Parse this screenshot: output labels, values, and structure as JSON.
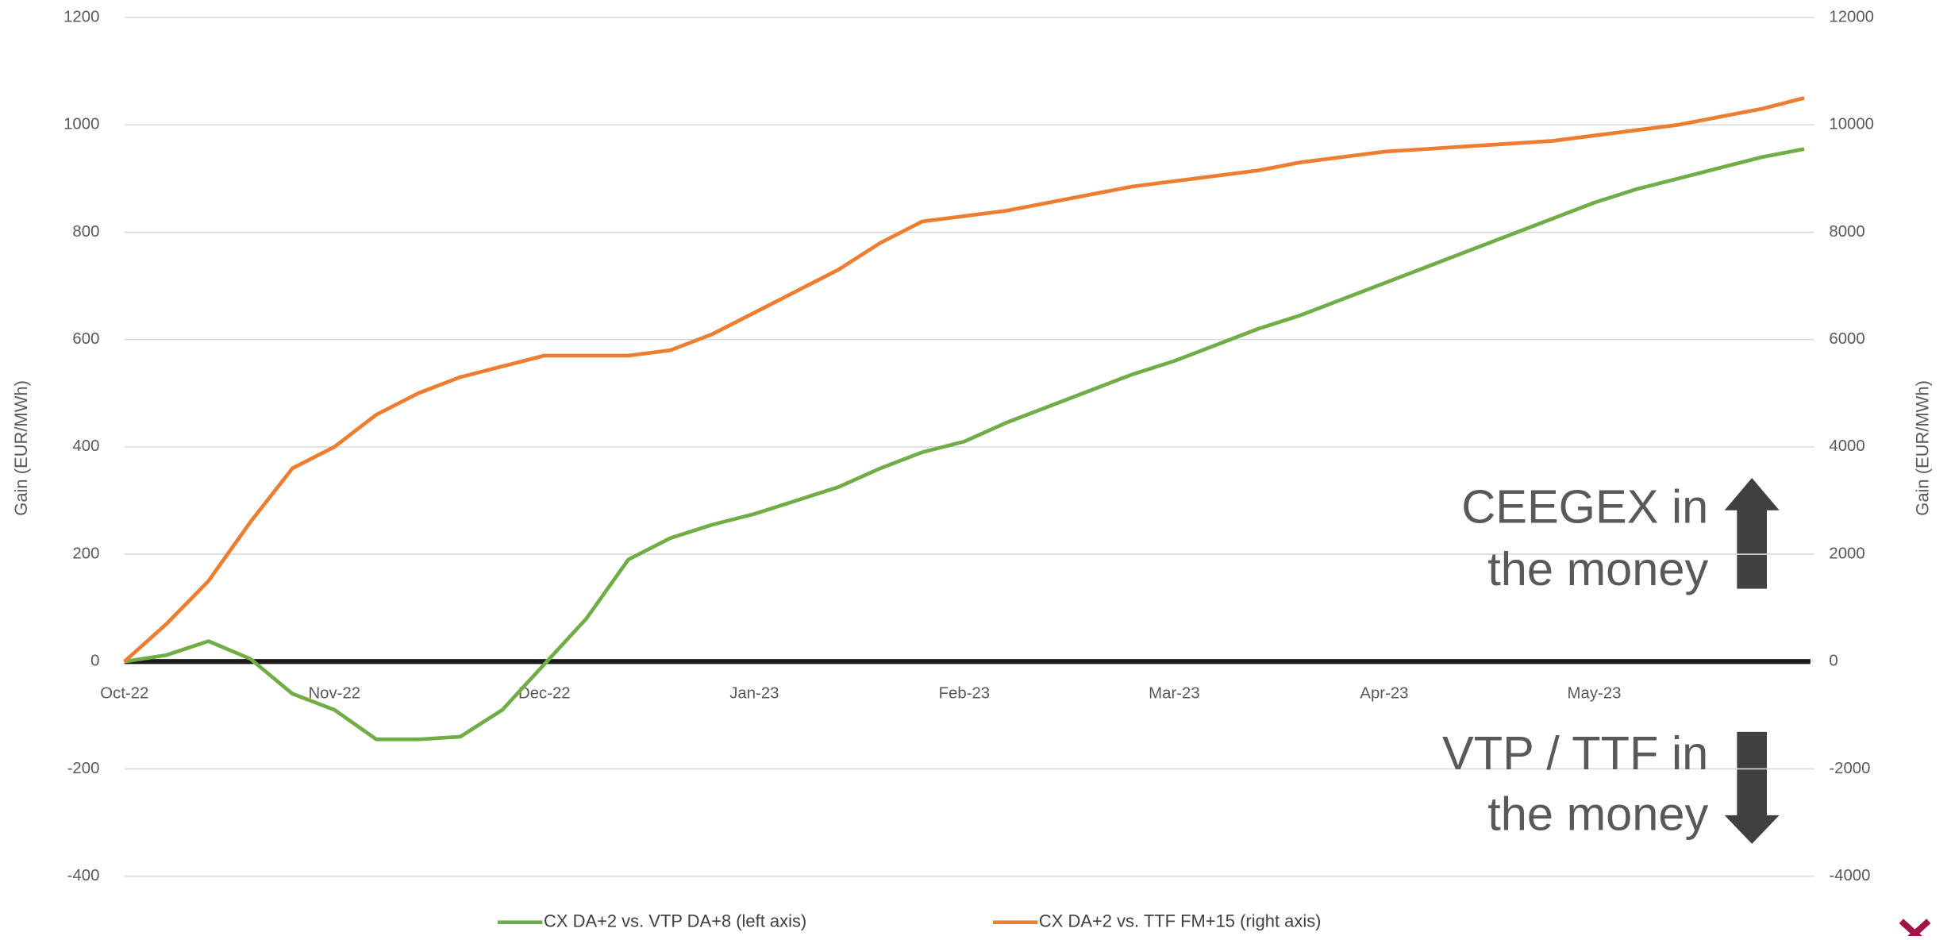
{
  "chart_data": {
    "type": "line",
    "ylabel": "Gain (EUR/MWh)",
    "y2label": "Gain (EUR/MWh)",
    "categories": [
      "Oct-22",
      null,
      null,
      null,
      null,
      "Nov-22",
      null,
      null,
      null,
      null,
      "Dec-22",
      null,
      null,
      null,
      null,
      "Jan-23",
      null,
      null,
      null,
      null,
      "Feb-23",
      null,
      null,
      null,
      null,
      "Mar-23",
      null,
      null,
      null,
      null,
      "Apr-23",
      null,
      null,
      null,
      null,
      "May-23",
      null,
      null,
      null,
      null,
      null
    ],
    "series": [
      {
        "name": "CX DA+2 vs. VTP DA+8 (left axis)",
        "color": "#70ad47",
        "axis": "y",
        "values": [
          0,
          12,
          38,
          5,
          -60,
          -90,
          -145,
          -145,
          -140,
          -90,
          -5,
          80,
          190,
          230,
          255,
          275,
          300,
          325,
          360,
          390,
          410,
          445,
          475,
          505,
          535,
          560,
          590,
          620,
          645,
          675,
          705,
          735,
          765,
          795,
          825,
          855,
          880,
          900,
          920,
          940,
          955
        ]
      },
      {
        "name": "CX DA+2 vs. TTF FM+15 (right axis)",
        "color": "#ed7d31",
        "axis": "y2",
        "values": [
          0,
          700,
          1500,
          2600,
          3600,
          4000,
          4600,
          5000,
          5300,
          5500,
          5700,
          5700,
          5700,
          5800,
          6100,
          6500,
          6900,
          7300,
          7800,
          8200,
          8300,
          8400,
          8550,
          8700,
          8850,
          8950,
          9050,
          9150,
          9300,
          9400,
          9500,
          9550,
          9600,
          9650,
          9700,
          9800,
          9900,
          10000,
          10150,
          10300,
          10500
        ]
      }
    ],
    "ylim": [
      -400,
      1200
    ],
    "yticks": [
      -400,
      -200,
      0,
      200,
      400,
      600,
      800,
      1000,
      1200
    ],
    "y2lim": [
      -4000,
      12000
    ],
    "y2ticks": [
      -4000,
      -2000,
      0,
      2000,
      4000,
      6000,
      8000,
      10000,
      12000
    ],
    "grid": true,
    "legend": "bottom",
    "annotations": [
      {
        "lines": [
          "CEEGEX in",
          "the money"
        ]
      },
      {
        "lines": [
          "VTP / TTF in",
          "the money"
        ]
      }
    ]
  }
}
